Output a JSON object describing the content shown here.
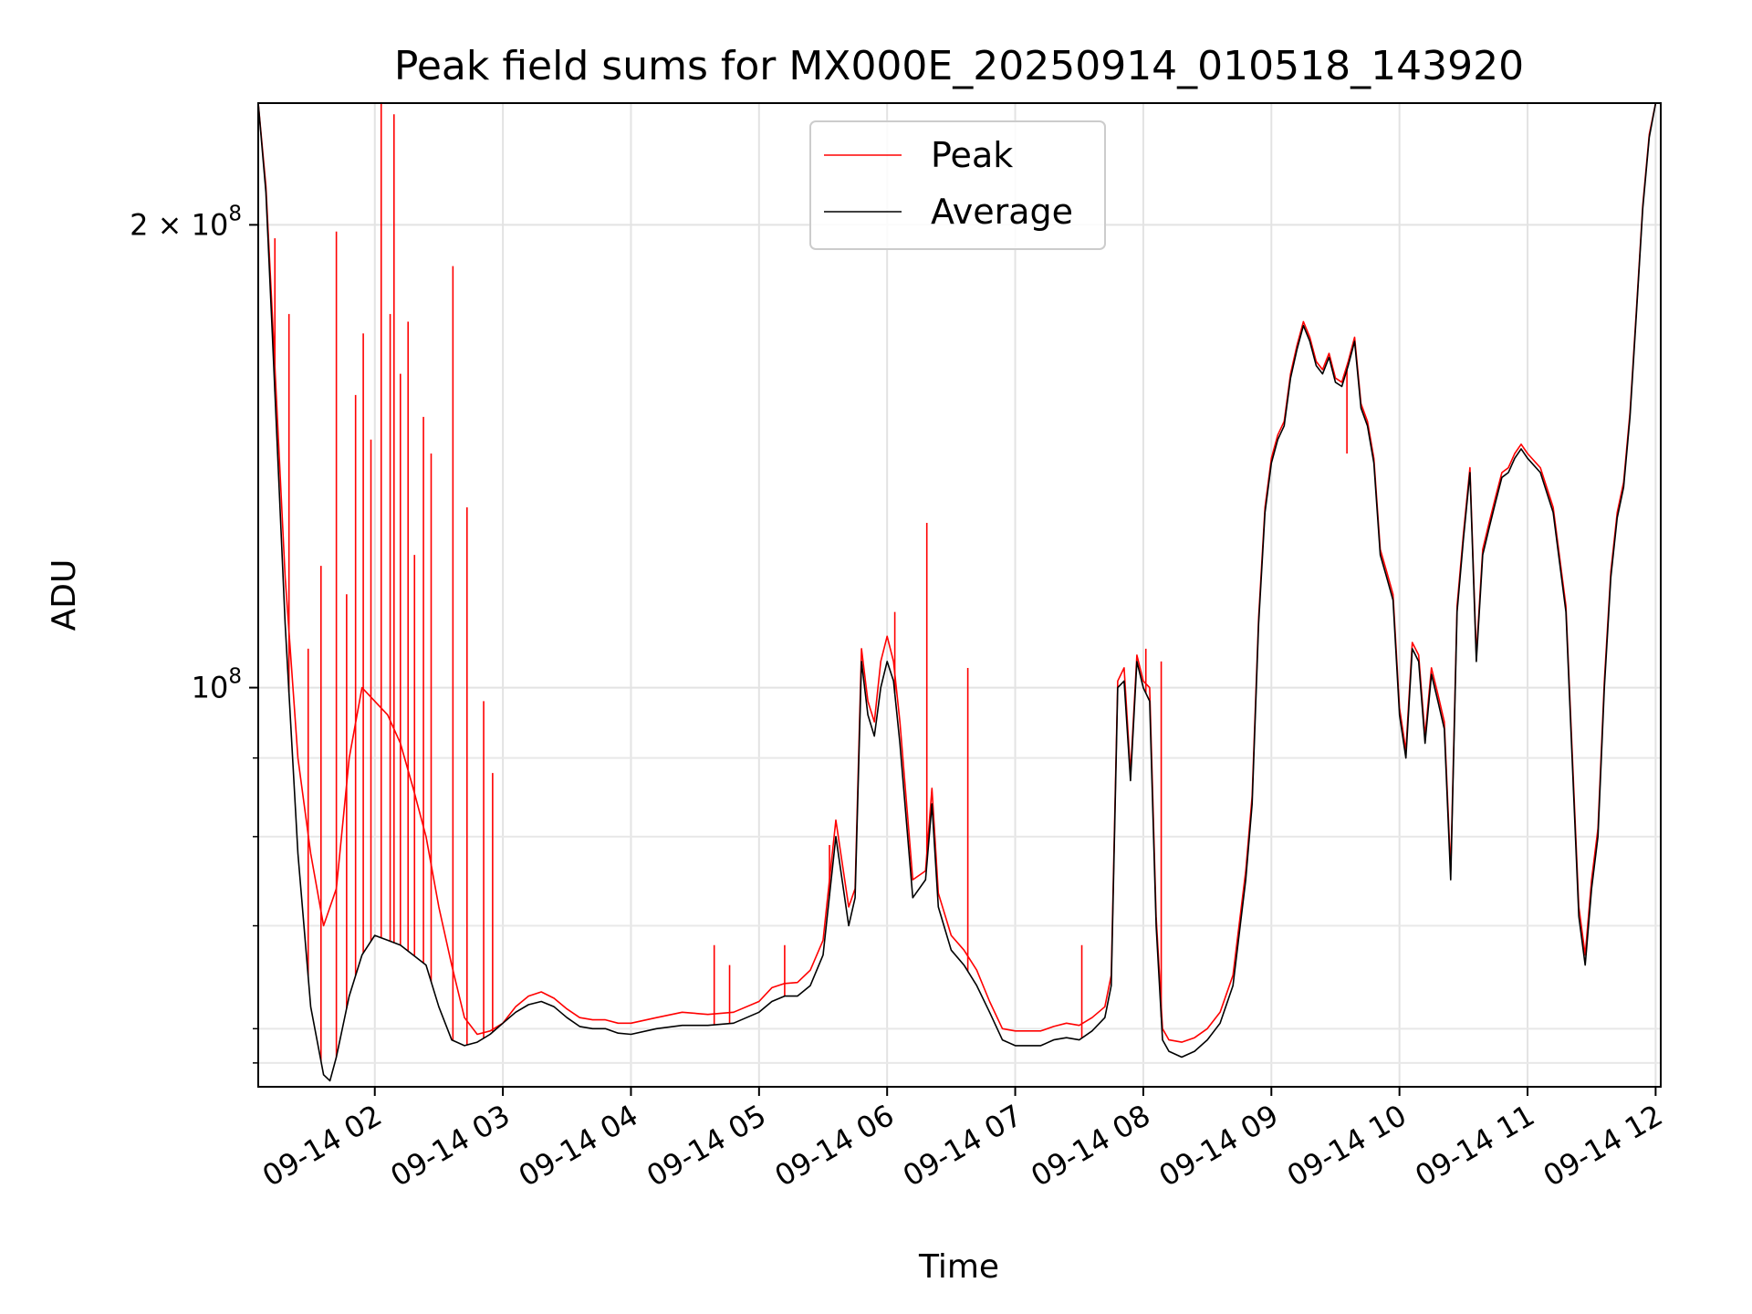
{
  "chart_data": {
    "type": "line",
    "title": "Peak field sums for MX000E_20250914_010518_143920",
    "xlabel": "Time",
    "ylabel": "ADU",
    "y_scale": "log",
    "ylim": [
      55000000,
      240000000
    ],
    "xlim_hours": [
      1.09,
      12.04
    ],
    "x_ticks": [
      {
        "hour": 2,
        "label": "09-14 02"
      },
      {
        "hour": 3,
        "label": "09-14 03"
      },
      {
        "hour": 4,
        "label": "09-14 04"
      },
      {
        "hour": 5,
        "label": "09-14 05"
      },
      {
        "hour": 6,
        "label": "09-14 06"
      },
      {
        "hour": 7,
        "label": "09-14 07"
      },
      {
        "hour": 8,
        "label": "09-14 08"
      },
      {
        "hour": 9,
        "label": "09-14 09"
      },
      {
        "hour": 10,
        "label": "09-14 10"
      },
      {
        "hour": 11,
        "label": "09-14 11"
      },
      {
        "hour": 12,
        "label": "09-14 12"
      }
    ],
    "y_major_ticks": [
      {
        "value": 100000000,
        "base": "10",
        "exp": "8"
      },
      {
        "value": 200000000,
        "base": "2 × 10",
        "exp": "8"
      }
    ],
    "y_minor_ticks": [
      57000000,
      60000000,
      70000000,
      80000000,
      90000000
    ],
    "grid": true,
    "legend_position": "top-center",
    "legend": [
      {
        "name": "Peak",
        "color": "#ff0000"
      },
      {
        "name": "Average",
        "color": "#000000"
      }
    ],
    "series": [
      {
        "name": "Average",
        "color": "#000000",
        "x_hours": [
          1.09,
          1.15,
          1.2,
          1.3,
          1.4,
          1.5,
          1.6,
          1.65,
          1.7,
          1.8,
          1.9,
          2.0,
          2.1,
          2.2,
          2.3,
          2.4,
          2.5,
          2.6,
          2.7,
          2.8,
          2.9,
          3.0,
          3.1,
          3.2,
          3.3,
          3.4,
          3.5,
          3.6,
          3.7,
          3.8,
          3.9,
          4.0,
          4.2,
          4.4,
          4.6,
          4.8,
          5.0,
          5.1,
          5.2,
          5.3,
          5.4,
          5.5,
          5.6,
          5.7,
          5.75,
          5.8,
          5.85,
          5.9,
          5.95,
          6.0,
          6.05,
          6.1,
          6.2,
          6.3,
          6.35,
          6.4,
          6.5,
          6.6,
          6.7,
          6.8,
          6.9,
          7.0,
          7.1,
          7.2,
          7.3,
          7.4,
          7.5,
          7.6,
          7.7,
          7.75,
          7.8,
          7.85,
          7.9,
          7.95,
          8.0,
          8.05,
          8.1,
          8.15,
          8.2,
          8.3,
          8.4,
          8.5,
          8.6,
          8.7,
          8.8,
          8.85,
          8.9,
          8.95,
          9.0,
          9.05,
          9.1,
          9.15,
          9.2,
          9.25,
          9.3,
          9.35,
          9.4,
          9.45,
          9.5,
          9.55,
          9.6,
          9.65,
          9.7,
          9.75,
          9.8,
          9.85,
          9.9,
          9.95,
          10.0,
          10.05,
          10.1,
          10.15,
          10.2,
          10.25,
          10.3,
          10.35,
          10.4,
          10.45,
          10.5,
          10.55,
          10.6,
          10.65,
          10.7,
          10.75,
          10.8,
          10.85,
          10.9,
          10.95,
          11.0,
          11.1,
          11.2,
          11.3,
          11.4,
          11.45,
          11.5,
          11.55,
          11.6,
          11.65,
          11.7,
          11.75,
          11.8,
          11.85,
          11.9,
          11.95,
          12.0
        ],
        "values": [
          240000000,
          210000000,
          170000000,
          110000000,
          78000000,
          62000000,
          56000000,
          55500000,
          57500000,
          63000000,
          67000000,
          69000000,
          68500000,
          68000000,
          67000000,
          66000000,
          62000000,
          59000000,
          58500000,
          58800000,
          59500000,
          60500000,
          61500000,
          62200000,
          62500000,
          62000000,
          61000000,
          60200000,
          60000000,
          60000000,
          59600000,
          59500000,
          60000000,
          60300000,
          60300000,
          60500000,
          61500000,
          62500000,
          63000000,
          63000000,
          64000000,
          67000000,
          80000000,
          70000000,
          73000000,
          104000000,
          96000000,
          93000000,
          100000000,
          104000000,
          101000000,
          92000000,
          73000000,
          75000000,
          84000000,
          72000000,
          67500000,
          66000000,
          64000000,
          61500000,
          59000000,
          58500000,
          58500000,
          58500000,
          59000000,
          59200000,
          59000000,
          59800000,
          61000000,
          64000000,
          100000000,
          101000000,
          87000000,
          104000000,
          100000000,
          98000000,
          70000000,
          59000000,
          58000000,
          57500000,
          58000000,
          59000000,
          60500000,
          64000000,
          75000000,
          84000000,
          110000000,
          130000000,
          140000000,
          145000000,
          148000000,
          159000000,
          166000000,
          172000000,
          168000000,
          162000000,
          160000000,
          164000000,
          158000000,
          157000000,
          162000000,
          168000000,
          152000000,
          148000000,
          140000000,
          122000000,
          118000000,
          114000000,
          96000000,
          90000000,
          106000000,
          104000000,
          92000000,
          102000000,
          98000000,
          94000000,
          75000000,
          112000000,
          125000000,
          138000000,
          104000000,
          122000000,
          127000000,
          132000000,
          137000000,
          138000000,
          141000000,
          143000000,
          141000000,
          138000000,
          130000000,
          112000000,
          71000000,
          66000000,
          74000000,
          80000000,
          100000000,
          118000000,
          129000000,
          135000000,
          150000000,
          175000000,
          205000000,
          228000000,
          240000000
        ]
      },
      {
        "name": "Peak",
        "color": "#ff0000",
        "x_hours": [
          1.09,
          1.15,
          1.2,
          1.3,
          1.4,
          1.5,
          1.6,
          1.7,
          1.8,
          1.9,
          2.0,
          2.1,
          2.2,
          2.3,
          2.4,
          2.5,
          2.6,
          2.7,
          2.8,
          2.9,
          3.0,
          3.1,
          3.2,
          3.3,
          3.4,
          3.5,
          3.6,
          3.7,
          3.8,
          3.9,
          4.0,
          4.2,
          4.4,
          4.6,
          4.8,
          5.0,
          5.1,
          5.2,
          5.3,
          5.4,
          5.5,
          5.6,
          5.7,
          5.75,
          5.8,
          5.85,
          5.9,
          5.95,
          6.0,
          6.05,
          6.1,
          6.2,
          6.3,
          6.35,
          6.4,
          6.5,
          6.6,
          6.7,
          6.8,
          6.9,
          7.0,
          7.1,
          7.2,
          7.3,
          7.4,
          7.5,
          7.6,
          7.7,
          7.75,
          7.8,
          7.85,
          7.9,
          7.95,
          8.0,
          8.05,
          8.1,
          8.15,
          8.2,
          8.3,
          8.4,
          8.5,
          8.6,
          8.7,
          8.8,
          8.85,
          8.9,
          8.95,
          9.0,
          9.05,
          9.1,
          9.15,
          9.2,
          9.25,
          9.3,
          9.35,
          9.4,
          9.45,
          9.5,
          9.55,
          9.6,
          9.65,
          9.7,
          9.75,
          9.8,
          9.85,
          9.9,
          9.95,
          10.0,
          10.05,
          10.1,
          10.15,
          10.2,
          10.25,
          10.3,
          10.35,
          10.4,
          10.45,
          10.5,
          10.55,
          10.6,
          10.65,
          10.7,
          10.75,
          10.8,
          10.85,
          10.9,
          10.95,
          11.0,
          11.1,
          11.2,
          11.3,
          11.4,
          11.45,
          11.5,
          11.55,
          11.6,
          11.65,
          11.7,
          11.75,
          11.8,
          11.85,
          11.9,
          11.95,
          12.0
        ],
        "values": [
          240000000,
          212000000,
          175000000,
          118000000,
          90000000,
          78000000,
          70000000,
          74000000,
          90000000,
          100000000,
          98000000,
          96000000,
          92000000,
          86000000,
          80000000,
          72000000,
          66000000,
          61000000,
          59500000,
          59800000,
          60500000,
          62000000,
          63000000,
          63400000,
          62800000,
          61800000,
          61000000,
          60800000,
          60800000,
          60500000,
          60500000,
          61000000,
          61500000,
          61300000,
          61500000,
          62500000,
          63800000,
          64200000,
          64300000,
          65500000,
          68500000,
          82000000,
          72000000,
          74000000,
          106000000,
          98000000,
          95000000,
          104000000,
          108000000,
          104000000,
          95000000,
          75000000,
          76000000,
          86000000,
          73500000,
          69000000,
          67500000,
          65500000,
          62500000,
          60000000,
          59800000,
          59800000,
          59800000,
          60200000,
          60500000,
          60300000,
          61000000,
          62000000,
          65000000,
          101000000,
          103000000,
          88000000,
          105000000,
          101000000,
          100000000,
          71000000,
          60000000,
          59000000,
          58800000,
          59200000,
          60000000,
          61500000,
          65000000,
          76000000,
          85000000,
          111000000,
          131000000,
          141000000,
          146000000,
          149000000,
          160000000,
          167000000,
          173000000,
          169000000,
          163000000,
          161000000,
          165000000,
          159000000,
          158000000,
          163000000,
          169000000,
          153000000,
          149000000,
          141000000,
          123000000,
          119000000,
          115000000,
          97000000,
          91000000,
          107000000,
          105000000,
          93000000,
          103000000,
          99000000,
          95000000,
          76000000,
          113000000,
          126000000,
          139000000,
          105000000,
          123000000,
          128000000,
          133000000,
          138000000,
          139000000,
          142000000,
          144000000,
          142000000,
          139000000,
          131000000,
          113000000,
          72000000,
          67000000,
          75000000,
          81000000,
          101000000,
          119000000,
          130000000,
          136000000,
          151000000,
          176000000,
          206000000,
          229000000,
          240000000
        ]
      },
      {
        "name": "Peak spikes",
        "role": "isolated spikes of the Peak series",
        "color": "#ff0000",
        "x_hours": [
          1.22,
          1.33,
          1.48,
          1.58,
          1.7,
          1.78,
          1.85,
          1.91,
          1.97,
          2.05,
          2.12,
          2.15,
          2.2,
          2.26,
          2.31,
          2.38,
          2.44,
          2.61,
          2.72,
          2.85,
          2.92,
          4.65,
          4.77,
          5.2,
          5.55,
          6.06,
          6.31,
          6.63,
          7.52,
          8.02,
          8.14,
          9.59
        ],
        "values": [
          196000000,
          175000000,
          106000000,
          120000000,
          198000000,
          115000000,
          155000000,
          170000000,
          145000000,
          240000000,
          175000000,
          236000000,
          160000000,
          173000000,
          122000000,
          150000000,
          142000000,
          188000000,
          131000000,
          98000000,
          88000000,
          68000000,
          66000000,
          68000000,
          79000000,
          112000000,
          128000000,
          103000000,
          68000000,
          106000000,
          104000000,
          142000000
        ]
      }
    ]
  }
}
